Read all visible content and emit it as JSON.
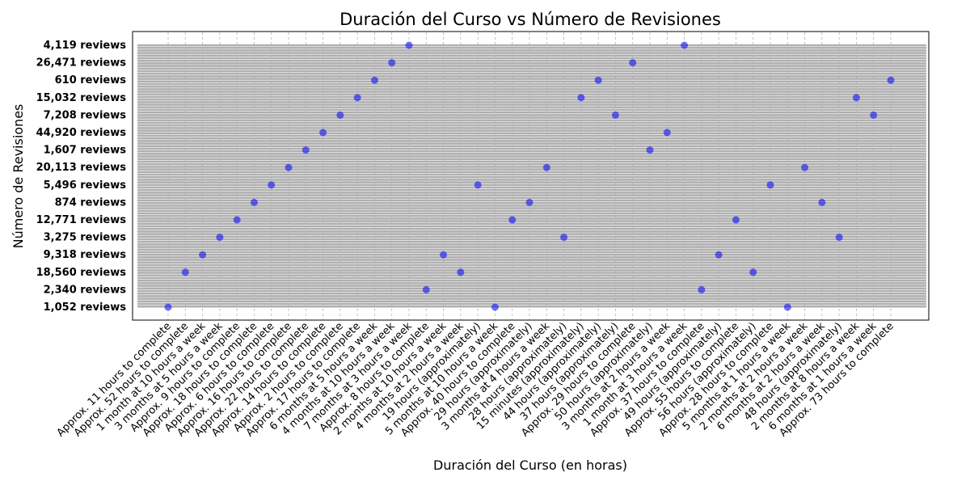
{
  "chart_data": {
    "type": "scatter",
    "title": "Duración del Curso vs Número de Revisiones",
    "xlabel": "Duración del Curso (en horas)",
    "ylabel": "Número de Revisiones",
    "grid": true,
    "marker_color": "#0000ff",
    "x_categories": [
      "Approx. 11 hours to complete",
      "Approx. 52 hours to complete",
      "1 month at 10 hours a week",
      "3 months at 5 hours a week",
      "Approx. 9 hours to complete",
      "Approx. 18 hours to complete",
      "Approx. 6 hours to complete",
      "Approx. 16 hours to complete",
      "Approx. 22 hours to complete",
      "Approx. 14 hours to complete",
      "Approx. 2 hours to complete",
      "Approx. 17 hours to complete",
      "6 months at 5 hours a week",
      "4 months at 10 hours a week",
      "7 months at 3 hours a week",
      "Approx. 8 hours to complete",
      "2 months at 10 hours a week",
      "4 months at 2 hours a week",
      "19 hours (approximately)",
      "5 months at 10 hours a week",
      "Approx. 40 hours to complete",
      "29 hours (approximately)",
      "3 months at 4 hours a week",
      "28 hours (approximately)",
      "15 minutes (approximately)",
      "44 hours (approximately)",
      "37 hours (approximately)",
      "Approx. 29 hours to complete",
      "50 hours (approximately)",
      "3 months at 2 hours a week",
      "1 month at 3 hours a week",
      "Approx. 37 hours to complete",
      "49 hours (approximately)",
      "Approx. 55 hours to complete",
      "56 hours (approximately)",
      "Approx. 28 hours to complete",
      "5 months at 1 hours a week",
      "2 months at 2 hours a week",
      "6 months at 2 hours a week",
      "48 hours (approximately)",
      "2 months at 8 hours a week",
      "6 months at 1 hours a week",
      "Approx. 73 hours to complete"
    ],
    "y_categories": [
      "1,052 reviews",
      "2,340 reviews",
      "18,560 reviews",
      "9,318 reviews",
      "3,275 reviews",
      "12,771 reviews",
      "874 reviews",
      "5,496 reviews",
      "20,113 reviews",
      "1,607 reviews",
      "44,920 reviews",
      "7,208 reviews",
      "15,032 reviews",
      "610 reviews",
      "26,471 reviews",
      "4,119 reviews"
    ],
    "points": [
      {
        "x": "Approx. 11 hours to complete",
        "y": "1,052 reviews"
      },
      {
        "x": "Approx. 52 hours to complete",
        "y": "18,560 reviews"
      },
      {
        "x": "1 month at 10 hours a week",
        "y": "9,318 reviews"
      },
      {
        "x": "3 months at 5 hours a week",
        "y": "3,275 reviews"
      },
      {
        "x": "Approx. 9 hours to complete",
        "y": "12,771 reviews"
      },
      {
        "x": "Approx. 18 hours to complete",
        "y": "874 reviews"
      },
      {
        "x": "Approx. 6 hours to complete",
        "y": "5,496 reviews"
      },
      {
        "x": "Approx. 16 hours to complete",
        "y": "20,113 reviews"
      },
      {
        "x": "Approx. 22 hours to complete",
        "y": "1,607 reviews"
      },
      {
        "x": "Approx. 14 hours to complete",
        "y": "44,920 reviews"
      },
      {
        "x": "Approx. 2 hours to complete",
        "y": "7,208 reviews"
      },
      {
        "x": "Approx. 17 hours to complete",
        "y": "15,032 reviews"
      },
      {
        "x": "6 months at 5 hours a week",
        "y": "610 reviews"
      },
      {
        "x": "4 months at 10 hours a week",
        "y": "26,471 reviews"
      },
      {
        "x": "7 months at 3 hours a week",
        "y": "4,119 reviews"
      },
      {
        "x": "Approx. 8 hours to complete",
        "y": "2,340 reviews"
      },
      {
        "x": "2 months at 10 hours a week",
        "y": "9,318 reviews"
      },
      {
        "x": "4 months at 2 hours a week",
        "y": "18,560 reviews"
      },
      {
        "x": "19 hours (approximately)",
        "y": "5,496 reviews"
      },
      {
        "x": "5 months at 10 hours a week",
        "y": "1,052 reviews"
      },
      {
        "x": "Approx. 40 hours to complete",
        "y": "12,771 reviews"
      },
      {
        "x": "29 hours (approximately)",
        "y": "874 reviews"
      },
      {
        "x": "3 months at 4 hours a week",
        "y": "20,113 reviews"
      },
      {
        "x": "28 hours (approximately)",
        "y": "3,275 reviews"
      },
      {
        "x": "15 minutes (approximately)",
        "y": "15,032 reviews"
      },
      {
        "x": "44 hours (approximately)",
        "y": "610 reviews"
      },
      {
        "x": "37 hours (approximately)",
        "y": "7,208 reviews"
      },
      {
        "x": "Approx. 29 hours to complete",
        "y": "26,471 reviews"
      },
      {
        "x": "50 hours (approximately)",
        "y": "1,607 reviews"
      },
      {
        "x": "3 months at 2 hours a week",
        "y": "44,920 reviews"
      },
      {
        "x": "1 month at 3 hours a week",
        "y": "4,119 reviews"
      },
      {
        "x": "Approx. 37 hours to complete",
        "y": "2,340 reviews"
      },
      {
        "x": "49 hours (approximately)",
        "y": "9,318 reviews"
      },
      {
        "x": "Approx. 55 hours to complete",
        "y": "12,771 reviews"
      },
      {
        "x": "56 hours (approximately)",
        "y": "18,560 reviews"
      },
      {
        "x": "Approx. 28 hours to complete",
        "y": "5,496 reviews"
      },
      {
        "x": "5 months at 1 hours a week",
        "y": "1,052 reviews"
      },
      {
        "x": "2 months at 2 hours a week",
        "y": "20,113 reviews"
      },
      {
        "x": "6 months at 2 hours a week",
        "y": "874 reviews"
      },
      {
        "x": "48 hours (approximately)",
        "y": "3,275 reviews"
      },
      {
        "x": "2 months at 8 hours a week",
        "y": "15,032 reviews"
      },
      {
        "x": "6 months at 1 hours a week",
        "y": "7,208 reviews"
      },
      {
        "x": "Approx. 73 hours to complete",
        "y": "610 reviews"
      }
    ]
  }
}
